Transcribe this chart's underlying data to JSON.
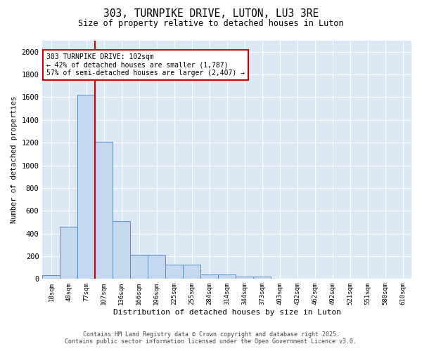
{
  "title": "303, TURNPIKE DRIVE, LUTON, LU3 3RE",
  "subtitle": "Size of property relative to detached houses in Luton",
  "xlabel": "Distribution of detached houses by size in Luton",
  "ylabel": "Number of detached properties",
  "categories": [
    "18sqm",
    "48sqm",
    "77sqm",
    "107sqm",
    "136sqm",
    "166sqm",
    "196sqm",
    "225sqm",
    "255sqm",
    "284sqm",
    "314sqm",
    "344sqm",
    "373sqm",
    "403sqm",
    "432sqm",
    "462sqm",
    "492sqm",
    "521sqm",
    "551sqm",
    "580sqm",
    "610sqm"
  ],
  "values": [
    30,
    460,
    1620,
    1210,
    510,
    215,
    215,
    125,
    125,
    40,
    40,
    20,
    20,
    0,
    0,
    0,
    0,
    0,
    0,
    0,
    0
  ],
  "bar_color": "#c5d8f0",
  "bar_edge_color": "#5b8fc9",
  "red_line_x": 2.5,
  "annotation_lines": [
    "303 TURNPIKE DRIVE: 102sqm",
    "← 42% of detached houses are smaller (1,787)",
    "57% of semi-detached houses are larger (2,407) →"
  ],
  "annotation_box_color": "#ffffff",
  "annotation_box_edge": "#cc0000",
  "red_line_color": "#cc0000",
  "ylim": [
    0,
    2100
  ],
  "yticks": [
    0,
    200,
    400,
    600,
    800,
    1000,
    1200,
    1400,
    1600,
    1800,
    2000
  ],
  "fig_background_color": "#ffffff",
  "plot_background_color": "#dde8f5",
  "grid_color": "#ffffff",
  "footer1": "Contains HM Land Registry data © Crown copyright and database right 2025.",
  "footer2": "Contains public sector information licensed under the Open Government Licence v3.0."
}
